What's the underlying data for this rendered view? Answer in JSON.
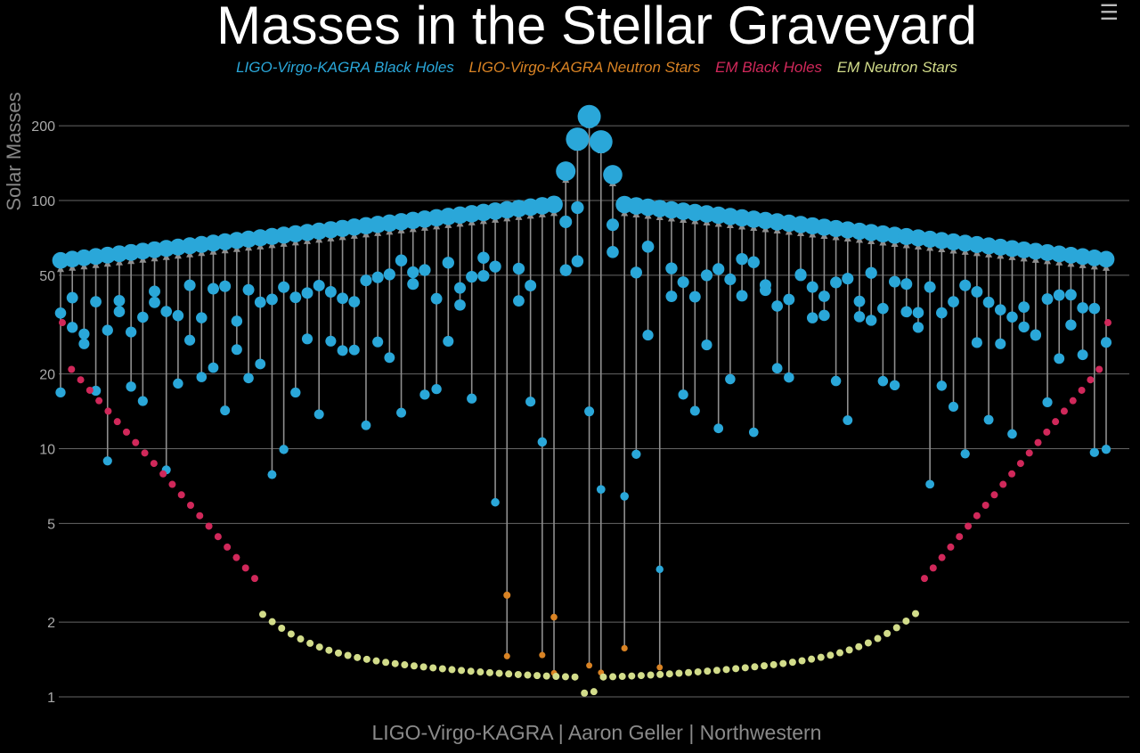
{
  "title": "Masses in the Stellar Graveyard",
  "menu_icon": "hamburger-menu-icon",
  "credit": "LIGO-Virgo-KAGRA | Aaron Geller | Northwestern",
  "colors": {
    "lvk_bh": "#2aa7d9",
    "lvk_ns": "#d98324",
    "em_bh": "#d0285a",
    "em_ns": "#d2dc8a",
    "arrow": "#8f8f8f",
    "grid": "#666666"
  },
  "chart_data": {
    "type": "scatter",
    "title": "Masses in the Stellar Graveyard",
    "ylabel": "Solar Masses",
    "yscale": "log",
    "ylim": [
      0.9,
      260
    ],
    "yticks": [
      1,
      2,
      5,
      10,
      20,
      50,
      100,
      200
    ],
    "ytick_labels": [
      "1",
      "2",
      "5",
      "10",
      "20",
      "50",
      "100",
      "200"
    ],
    "legend": [
      {
        "label": "LIGO-Virgo-KAGRA Black Holes",
        "color": "#2aa7d9"
      },
      {
        "label": "LIGO-Virgo-KAGRA Neutron Stars",
        "color": "#d98324"
      },
      {
        "label": "EM Black Holes",
        "color": "#d0285a"
      },
      {
        "label": "EM Neutron Stars",
        "color": "#d2dc8a"
      }
    ],
    "n_mergers": 90,
    "n_em_bh": 44,
    "n_em_ns": 70
  }
}
